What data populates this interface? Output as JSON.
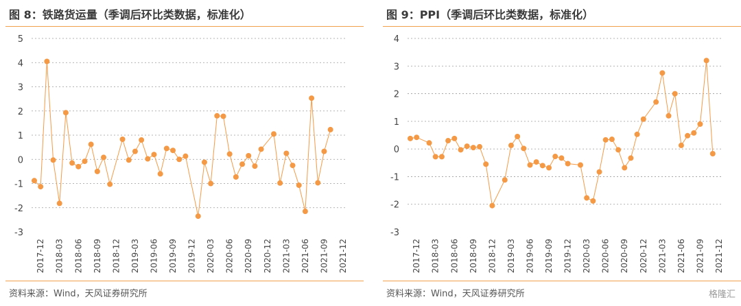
{
  "panels": [
    {
      "title": "图 8：铁路货运量（季调后环比类数据，标准化）",
      "source": "资料来源：Wind，天风证券研究所"
    },
    {
      "title": "图 9：PPI（季调后环比类数据，标准化）",
      "source": "资料来源：Wind，天风证券研究所"
    }
  ],
  "watermark": "格隆汇",
  "colors": {
    "accent": "#f0a04b",
    "series": "#f49a46",
    "grid": "#9a9a9a"
  },
  "chart_data": [
    {
      "type": "line",
      "title": "",
      "xlabel": "",
      "ylabel": "",
      "ylim": [
        -3,
        5
      ],
      "yticks": [
        -3,
        -2,
        -1,
        0,
        1,
        2,
        3,
        4,
        5
      ],
      "grid": "horizontal dashed",
      "x": [
        "2017-11",
        "2017-12",
        "2018-01",
        "2018-02",
        "2018-03",
        "2018-04",
        "2018-05",
        "2018-06",
        "2018-07",
        "2018-08",
        "2018-09",
        "2018-10",
        "2018-11",
        "2018-12",
        "2019-01",
        "2019-02",
        "2019-03",
        "2019-04",
        "2019-05",
        "2019-06",
        "2019-07",
        "2019-08",
        "2019-09",
        "2019-10",
        "2019-11",
        "2019-12",
        "2020-01",
        "2020-02",
        "2020-03",
        "2020-04",
        "2020-05",
        "2020-06",
        "2020-07",
        "2020-08",
        "2020-09",
        "2020-10",
        "2020-11",
        "2020-12",
        "2021-01",
        "2021-02",
        "2021-03",
        "2021-04",
        "2021-05",
        "2021-06",
        "2021-07",
        "2021-08",
        "2021-09",
        "2021-10",
        "2021-11",
        "2021-12"
      ],
      "xtick_labels": [
        "2017-12",
        "2018-03",
        "2018-06",
        "2018-09",
        "2018-12",
        "2019-03",
        "2019-06",
        "2019-09",
        "2019-12",
        "2020-03",
        "2020-06",
        "2020-09",
        "2020-12",
        "2021-03",
        "2021-06",
        "2021-09",
        "2021-12"
      ],
      "series": [
        {
          "values": [
            -0.88,
            -1.13,
            4.05,
            -0.03,
            -1.82,
            1.93,
            -0.15,
            -0.3,
            -0.08,
            0.62,
            -0.5,
            0.08,
            -1.03,
            null,
            0.83,
            -0.03,
            0.33,
            0.8,
            0.02,
            0.2,
            -0.6,
            0.45,
            0.37,
            0.0,
            0.13,
            null,
            -2.35,
            -0.12,
            -1.0,
            1.8,
            1.78,
            0.22,
            -0.73,
            -0.2,
            0.15,
            -0.28,
            0.42,
            null,
            1.05,
            -0.98,
            0.25,
            -0.25,
            -1.07,
            -2.15,
            2.53,
            -0.97,
            0.33,
            1.23,
            null,
            null
          ]
        }
      ]
    },
    {
      "type": "line",
      "title": "",
      "xlabel": "",
      "ylabel": "",
      "ylim": [
        -3,
        4
      ],
      "yticks": [
        -3,
        -2,
        -1,
        0,
        1,
        2,
        3,
        4
      ],
      "grid": "horizontal dashed",
      "x": [
        "2017-11",
        "2017-12",
        "2018-01",
        "2018-02",
        "2018-03",
        "2018-04",
        "2018-05",
        "2018-06",
        "2018-07",
        "2018-08",
        "2018-09",
        "2018-10",
        "2018-11",
        "2018-12",
        "2019-01",
        "2019-02",
        "2019-03",
        "2019-04",
        "2019-05",
        "2019-06",
        "2019-07",
        "2019-08",
        "2019-09",
        "2019-10",
        "2019-11",
        "2019-12",
        "2020-01",
        "2020-02",
        "2020-03",
        "2020-04",
        "2020-05",
        "2020-06",
        "2020-07",
        "2020-08",
        "2020-09",
        "2020-10",
        "2020-11",
        "2020-12",
        "2021-01",
        "2021-02",
        "2021-03",
        "2021-04",
        "2021-05",
        "2021-06",
        "2021-07",
        "2021-08",
        "2021-09",
        "2021-10",
        "2021-11",
        "2021-12"
      ],
      "xtick_labels": [
        "2017-12",
        "2018-03",
        "2018-06",
        "2018-09",
        "2018-12",
        "2019-03",
        "2019-06",
        "2019-09",
        "2019-12",
        "2020-03",
        "2020-06",
        "2020-09",
        "2020-12",
        "2021-03",
        "2021-06",
        "2021-09",
        "2021-12"
      ],
      "series": [
        {
          "values": [
            0.38,
            0.42,
            null,
            0.22,
            -0.28,
            -0.28,
            0.3,
            0.38,
            -0.03,
            0.1,
            0.05,
            0.08,
            -0.55,
            -2.05,
            null,
            -1.12,
            0.13,
            0.45,
            0.02,
            -0.58,
            -0.47,
            -0.6,
            -0.68,
            -0.27,
            -0.33,
            -0.53,
            null,
            -0.58,
            -1.77,
            -1.88,
            -0.83,
            0.33,
            0.35,
            -0.03,
            -0.68,
            -0.33,
            0.53,
            1.08,
            null,
            1.7,
            2.75,
            1.2,
            2.0,
            0.13,
            0.48,
            0.58,
            0.9,
            3.2,
            -0.17,
            null
          ]
        }
      ]
    }
  ]
}
